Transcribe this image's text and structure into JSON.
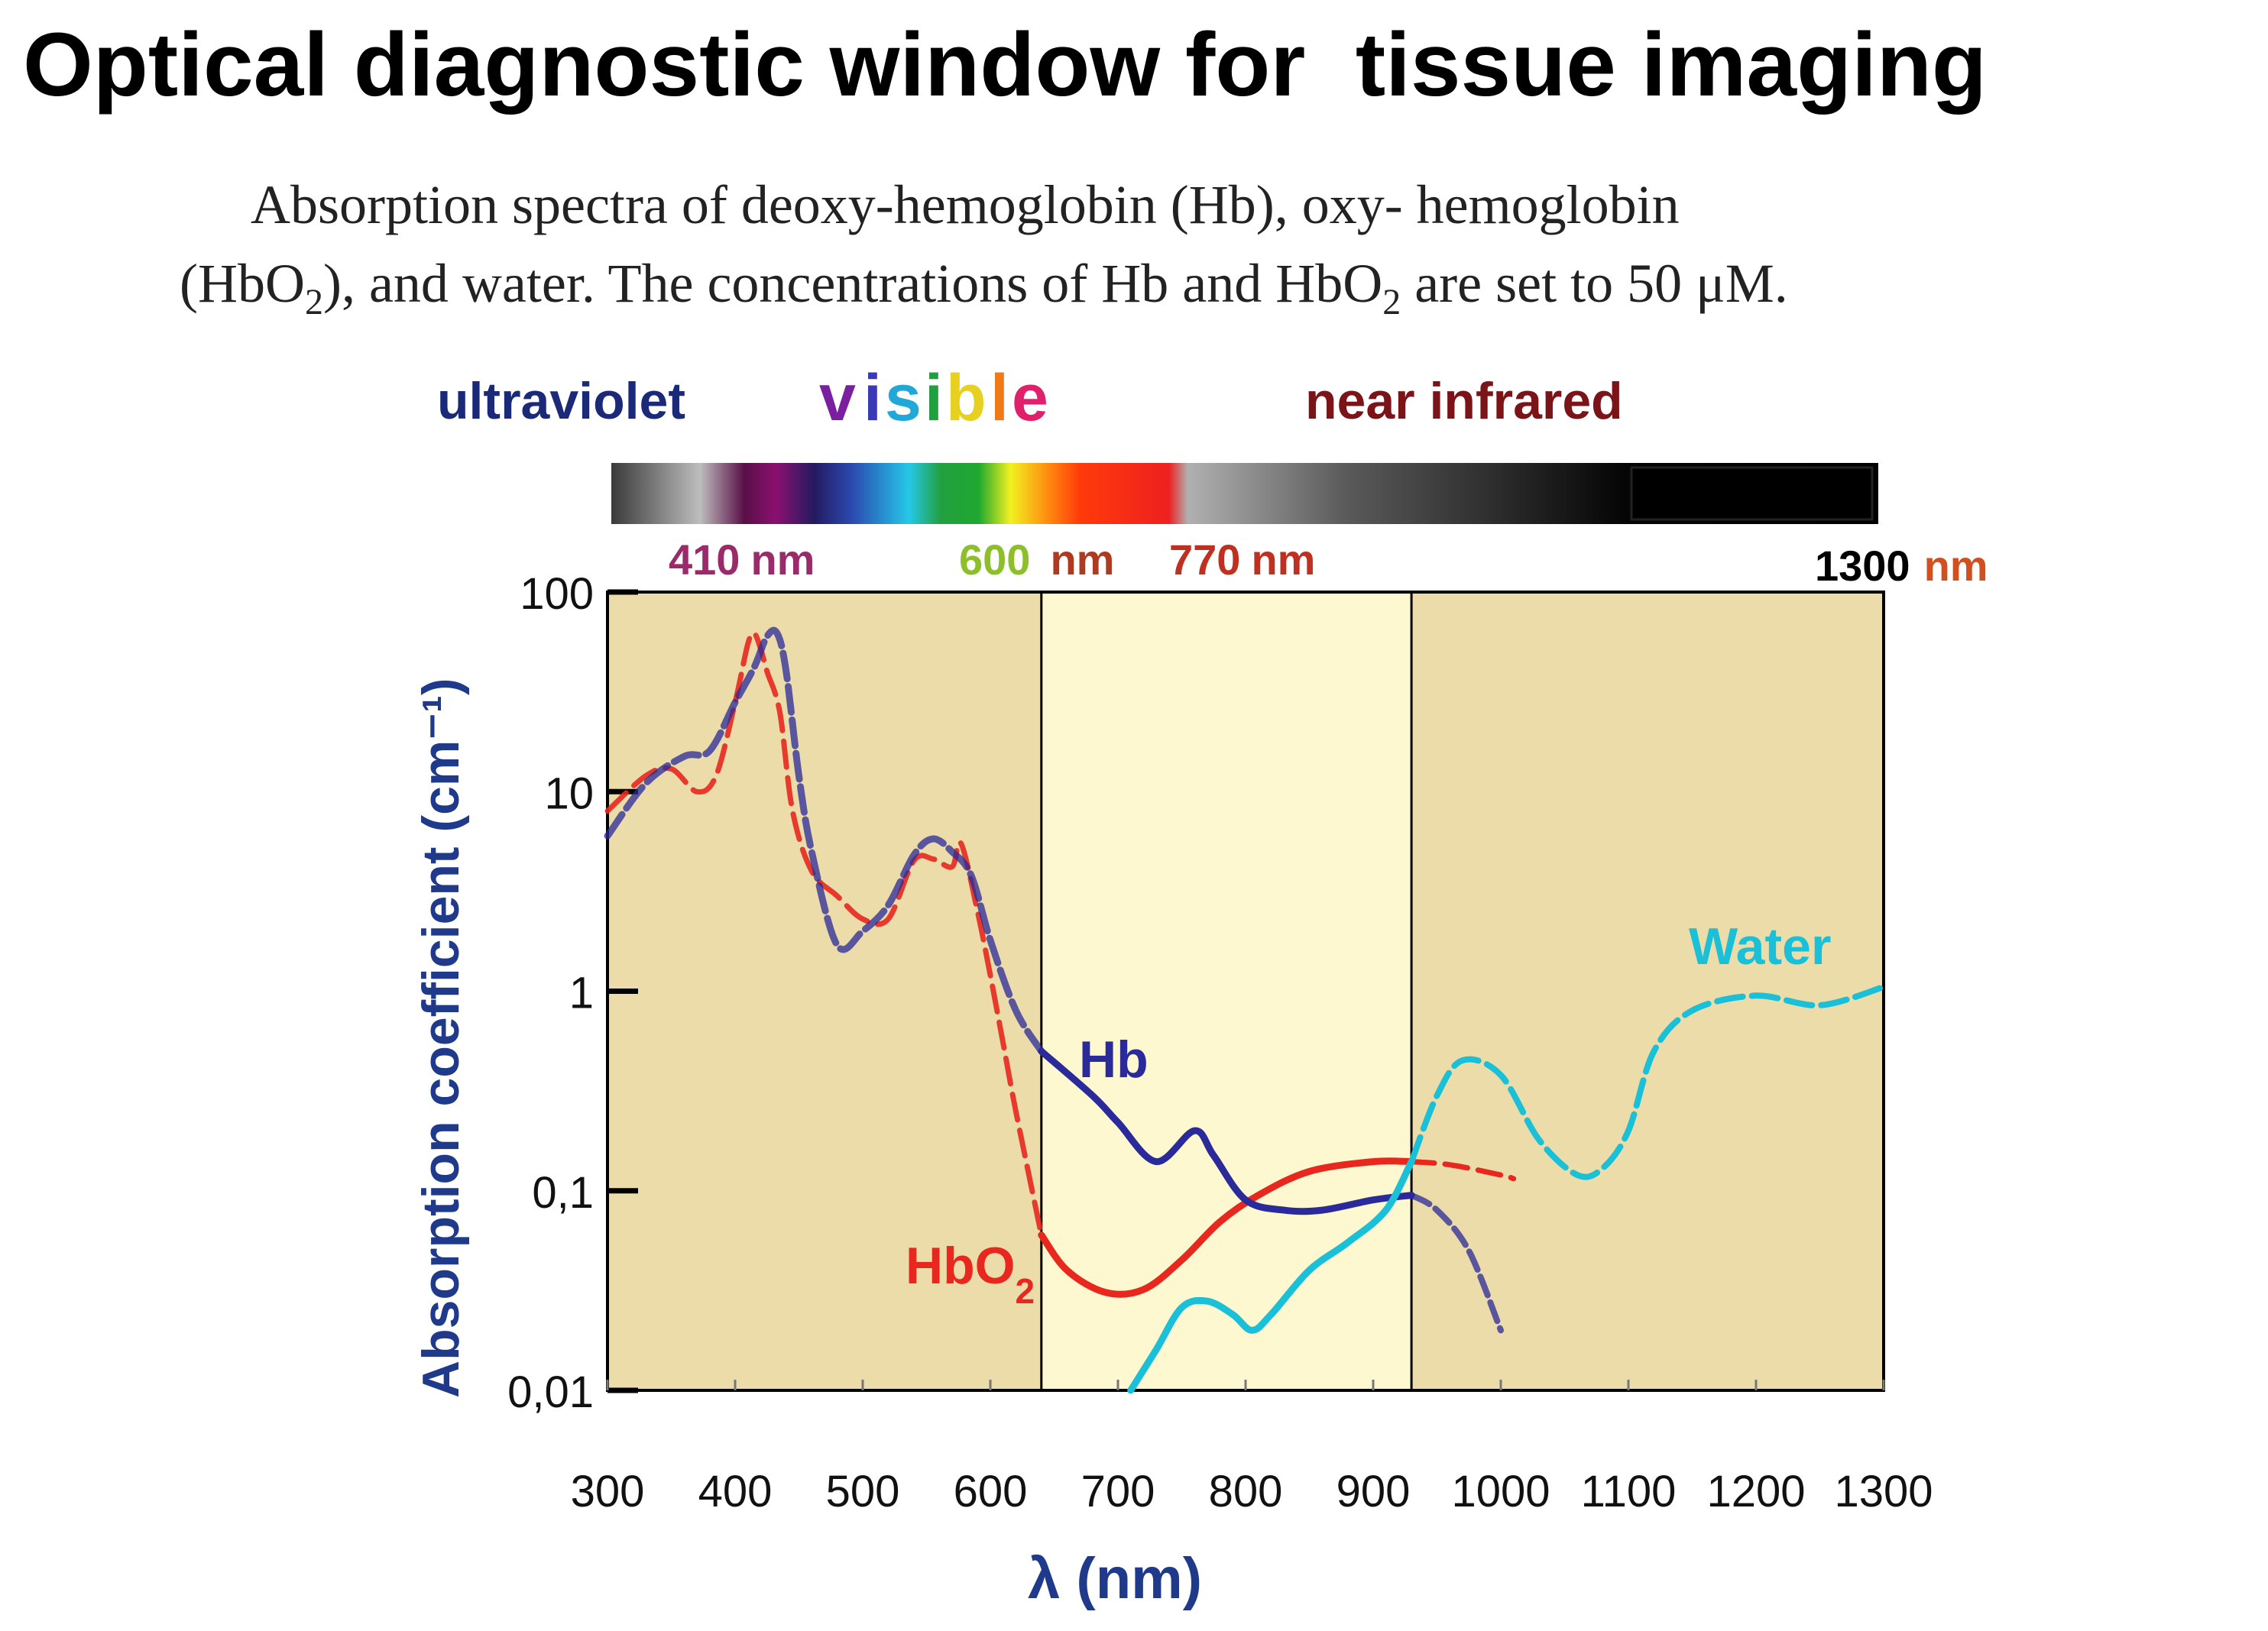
{
  "title": "Optical diagnostic window for  tissue imaging",
  "caption": {
    "line1": "Absorption spectra of deoxy-hemoglobin (Hb), oxy- hemoglobin",
    "line2_a": "(HbO",
    "line2_sub": "2",
    "line2_b": "), and water. The concentrations of Hb and HbO",
    "line2_sub2": "2",
    "line2_c": " are set to 50 μM."
  },
  "spectrum_band": {
    "labels": {
      "uv": "ultraviolet",
      "visible_letters": [
        "v",
        "i",
        "s",
        "i",
        "b",
        "l",
        "e"
      ],
      "nir": "near infrared"
    },
    "markers": [
      {
        "value": "410",
        "unit": "nm"
      },
      {
        "value": "600",
        "unit": "nm"
      },
      {
        "value": "770",
        "unit": "nm"
      },
      {
        "value": "1300",
        "unit": "nm"
      }
    ]
  },
  "colors": {
    "hb": "#2a2a9a",
    "hbo2": "#e8281e",
    "water": "#19c0d8",
    "axis_label": "#1f3a8a",
    "plot_bg": "#ecdcaa",
    "window_bg": "#fdf8cf",
    "uv_text": "#1a2a78",
    "nir_text": "#7a1418"
  },
  "chart_data": {
    "type": "line",
    "title": "",
    "xlabel": "λ (nm)",
    "ylabel": "Absorption coefficient (cm⁻¹)",
    "xlim": [
      300,
      1300
    ],
    "ylim": [
      0.01,
      100
    ],
    "yscale": "log",
    "xticks": [
      "300",
      "400",
      "500",
      "600",
      "700",
      "800",
      "900",
      "1000",
      "1100",
      "1200",
      "1300"
    ],
    "yticks": [
      "100",
      "10",
      "1",
      "0,1",
      "0,01"
    ],
    "window_x": [
      640,
      930
    ],
    "series": [
      {
        "name": "Hb",
        "color": "#2a2a9a",
        "x": [
          300,
          330,
          360,
          380,
          400,
          415,
          425,
          433,
          440,
          450,
          460,
          480,
          500,
          520,
          540,
          555,
          570,
          585,
          600,
          620,
          640,
          680,
          700,
          730,
          760,
          775,
          800,
          830,
          860,
          900,
          930,
          950,
          975,
          1000
        ],
        "y": [
          6,
          11,
          15,
          16,
          28,
          42,
          60,
          62,
          40,
          12,
          5,
          1.7,
          2.0,
          2.7,
          4.8,
          5.8,
          5.0,
          3.8,
          1.8,
          0.8,
          0.5,
          0.3,
          0.22,
          0.14,
          0.2,
          0.15,
          0.09,
          0.08,
          0.08,
          0.09,
          0.095,
          0.08,
          0.05,
          0.02
        ]
      },
      {
        "name": "HbO",
        "color": "#e8281e",
        "x": [
          300,
          330,
          350,
          370,
          385,
          400,
          410,
          415,
          420,
          425,
          435,
          445,
          460,
          480,
          500,
          520,
          540,
          555,
          570,
          577,
          590,
          600,
          610,
          620,
          640,
          660,
          690,
          720,
          750,
          780,
          810,
          850,
          900,
          930,
          960,
          1000,
          1010
        ],
        "y": [
          8,
          12,
          13,
          10,
          12,
          28,
          55,
          62,
          52,
          40,
          25,
          8,
          4,
          3.0,
          2.3,
          2.3,
          4.5,
          4.6,
          4.2,
          5.5,
          2.5,
          1.2,
          0.55,
          0.25,
          0.06,
          0.04,
          0.031,
          0.032,
          0.045,
          0.07,
          0.095,
          0.125,
          0.14,
          0.14,
          0.135,
          0.12,
          0.115
        ]
      },
      {
        "name": "Water",
        "color": "#19c0d8",
        "x": [
          710,
          730,
          750,
          770,
          790,
          805,
          820,
          850,
          880,
          910,
          930,
          950,
          970,
          1000,
          1030,
          1060,
          1080,
          1100,
          1120,
          1150,
          1200,
          1250,
          1300
        ],
        "y": [
          0.01,
          0.016,
          0.026,
          0.028,
          0.024,
          0.02,
          0.024,
          0.04,
          0.055,
          0.08,
          0.14,
          0.3,
          0.45,
          0.38,
          0.18,
          0.12,
          0.13,
          0.2,
          0.5,
          0.8,
          0.95,
          0.85,
          1.05
        ]
      }
    ],
    "series_labels": {
      "hb": "Hb",
      "hbo2_main": "HbO",
      "hbo2_sub": "2",
      "water": "Water"
    }
  }
}
